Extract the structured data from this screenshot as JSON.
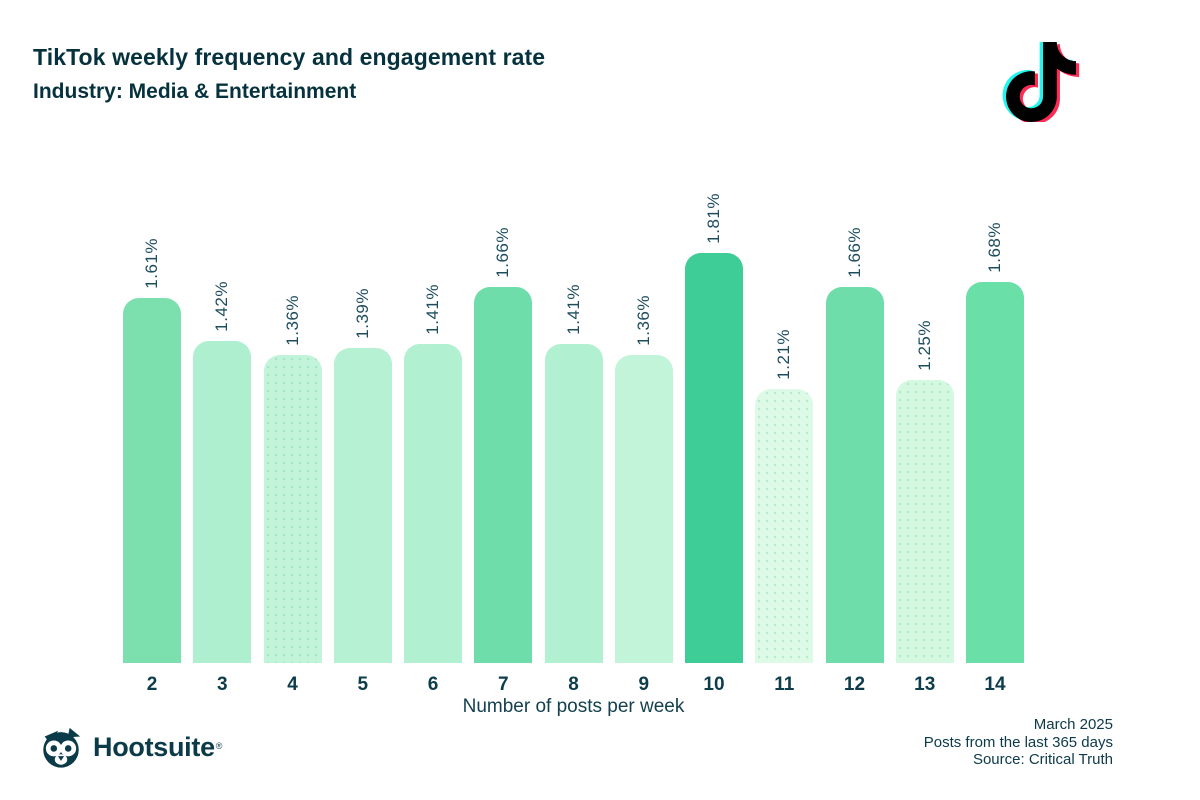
{
  "header": {
    "title": "TikTok weekly frequency and engagement rate",
    "subtitle": "Industry: Media & Entertainment"
  },
  "chart_data": {
    "type": "bar",
    "title": "TikTok weekly frequency and engagement rate",
    "subtitle": "Industry: Media & Entertainment",
    "xlabel": "Number of posts per week",
    "ylabel": "",
    "ylim": [
      0,
      1.81
    ],
    "grid": false,
    "legend": false,
    "categories": [
      "2",
      "3",
      "4",
      "5",
      "6",
      "7",
      "8",
      "9",
      "10",
      "11",
      "12",
      "13",
      "14"
    ],
    "values": [
      1.61,
      1.42,
      1.36,
      1.39,
      1.41,
      1.66,
      1.41,
      1.36,
      1.81,
      1.21,
      1.66,
      1.25,
      1.68
    ],
    "labels": [
      "1.61%",
      "1.42%",
      "1.36%",
      "1.39%",
      "1.41%",
      "1.66%",
      "1.41%",
      "1.36%",
      "1.81%",
      "1.21%",
      "1.66%",
      "1.25%",
      "1.68%"
    ],
    "colors": [
      "#7ce0ae",
      "#aeefcf",
      "#c2f4da",
      "#b6f1d4",
      "#b1f0d1",
      "#6edda9",
      "#b1f0d1",
      "#c2f4da",
      "#3ecd96",
      "#ddfae7",
      "#6edda9",
      "#d5f8e1",
      "#6adfa7"
    ],
    "dotted": [
      false,
      false,
      true,
      false,
      false,
      false,
      false,
      false,
      false,
      true,
      false,
      true,
      false
    ]
  },
  "branding": {
    "hootsuite_wordmark": "Hootsuite",
    "registered_mark": "®"
  },
  "footer": {
    "line1": "March 2025",
    "line2": "Posts from the last 365 days",
    "line3": "Source: Critical Truth"
  },
  "colors": {
    "text_dark": "#06323e",
    "tiktok_cyan": "#25f4ee",
    "tiktok_pink": "#fe2c55",
    "tiktok_black": "#010101"
  }
}
